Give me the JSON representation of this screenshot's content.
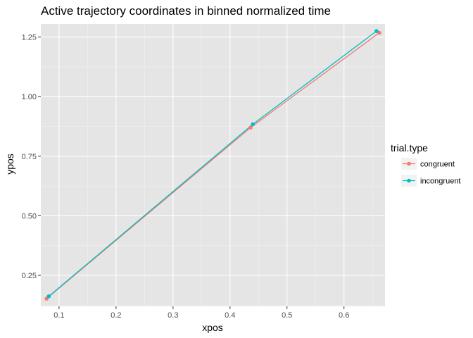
{
  "chart_data": {
    "type": "line",
    "title": "Active trajectory coordinates in binned normalized time",
    "xlabel": "xpos",
    "ylabel": "ypos",
    "xlim": [
      0.068,
      0.672
    ],
    "ylim": [
      0.12,
      1.305
    ],
    "x_ticks": [
      0.1,
      0.2,
      0.3,
      0.4,
      0.5,
      0.6
    ],
    "x_tick_labels": [
      "0.1",
      "0.2",
      "0.3",
      "0.4",
      "0.5",
      "0.6"
    ],
    "y_ticks": [
      0.25,
      0.5,
      0.75,
      1.0,
      1.25
    ],
    "y_tick_labels": [
      "0.25",
      "0.50",
      "0.75",
      "1.00",
      "1.25"
    ],
    "grid": true,
    "legend": {
      "title": "trial.type",
      "placement": "right"
    },
    "series": [
      {
        "name": "congruent",
        "color": "#F8766D",
        "points": [
          {
            "x": 0.078,
            "y": 0.152
          },
          {
            "x": 0.436,
            "y": 0.87
          },
          {
            "x": 0.662,
            "y": 1.268
          }
        ]
      },
      {
        "name": "incongruent",
        "color": "#00BFC4",
        "points": [
          {
            "x": 0.082,
            "y": 0.162
          },
          {
            "x": 0.44,
            "y": 0.884
          },
          {
            "x": 0.657,
            "y": 1.275
          }
        ]
      }
    ]
  },
  "colors": {
    "panel_background": "#E5E5E5",
    "grid_major": "#FFFFFF",
    "grid_minor": "#F2F2F2",
    "legend_key_background": "#F2F2F2"
  }
}
